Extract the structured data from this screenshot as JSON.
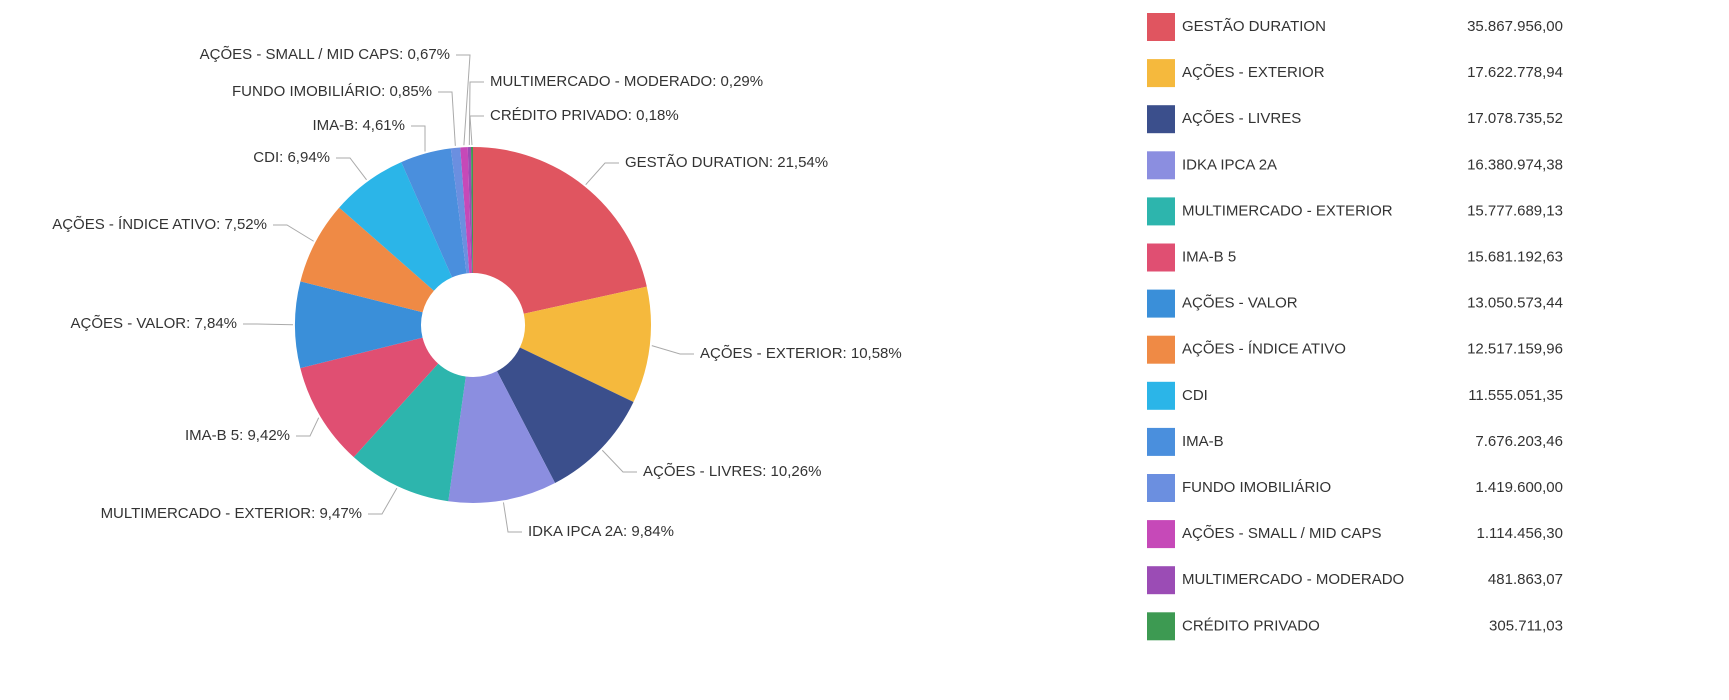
{
  "chart_data": {
    "type": "donut",
    "categories": [
      "GESTÃO DURATION",
      "AÇÕES - EXTERIOR",
      "AÇÕES - LIVRES",
      "IDKA IPCA 2A",
      "MULTIMERCADO - EXTERIOR",
      "IMA-B 5",
      "AÇÕES - VALOR",
      "AÇÕES - ÍNDICE ATIVO",
      "CDI",
      "IMA-B",
      "FUNDO IMOBILIÁRIO",
      "AÇÕES - SMALL / MID CAPS",
      "MULTIMERCADO - MODERADO",
      "CRÉDITO PRIVADO"
    ],
    "values": [
      21.54,
      10.58,
      10.26,
      9.84,
      9.47,
      9.42,
      7.84,
      7.52,
      6.94,
      4.61,
      0.85,
      0.67,
      0.29,
      0.18
    ],
    "value_labels": [
      "GESTÃO DURATION: 21,54%",
      "AÇÕES - EXTERIOR: 10,58%",
      "AÇÕES - LIVRES: 10,26%",
      "IDKA IPCA 2A: 9,84%",
      "MULTIMERCADO - EXTERIOR: 9,47%",
      "IMA-B 5: 9,42%",
      "AÇÕES - VALOR: 7,84%",
      "AÇÕES - ÍNDICE ATIVO: 7,52%",
      "CDI: 6,94%",
      "IMA-B: 4,61%",
      "FUNDO IMOBILIÁRIO: 0,85%",
      "AÇÕES - SMALL / MID CAPS: 0,67%",
      "MULTIMERCADO - MODERADO: 0,29%",
      "CRÉDITO PRIVADO: 0,18%"
    ],
    "amounts": [
      35867956.0,
      17622778.94,
      17078735.52,
      16380974.38,
      15777689.13,
      15681192.63,
      13050573.44,
      12517159.96,
      11555051.35,
      7676203.46,
      1419600.0,
      1114456.3,
      481863.07,
      305711.03
    ],
    "amount_labels": [
      "35.867.956,00",
      "17.622.778,94",
      "17.078.735,52",
      "16.380.974,38",
      "15.777.689,13",
      "15.681.192,63",
      "13.050.573,44",
      "12.517.159,96",
      "11.555.051,35",
      "7.676.203,46",
      "1.419.600,00",
      "1.114.456,30",
      "481.863,07",
      "305.711,03"
    ],
    "colors": [
      "#e05560",
      "#f5b93d",
      "#3b4f8c",
      "#8b8ee0",
      "#2db5ad",
      "#e04f72",
      "#3a8fd9",
      "#ef8a45",
      "#2bb5e8",
      "#4a8fdd",
      "#6b8fe0",
      "#c649b8",
      "#9b4cb5",
      "#3d9a52"
    ],
    "legend": "right"
  }
}
